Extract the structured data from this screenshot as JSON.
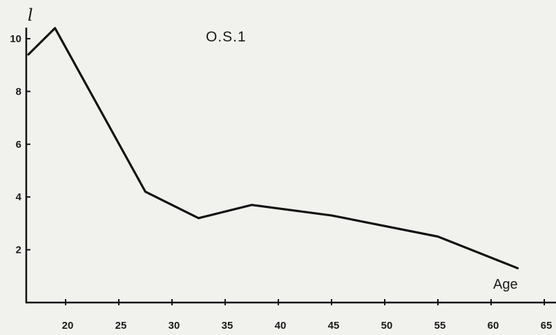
{
  "chart_data": {
    "type": "line",
    "title": "O.S.1",
    "ylabel": "l",
    "xlabel": "Age",
    "xlim": [
      15,
      66
    ],
    "ylim": [
      0,
      11
    ],
    "x_ticks": [
      "20",
      "25",
      "30",
      "35",
      "40",
      "45",
      "50",
      "55",
      "60",
      "65"
    ],
    "y_ticks": [
      "2",
      "4",
      "6",
      "8",
      "10"
    ],
    "grid": false,
    "legend": "none",
    "series": [
      {
        "x": [
          16.5,
          19,
          27.5,
          32.5,
          37.5,
          45,
          55,
          62.5
        ],
        "y": [
          9.4,
          10.4,
          4.2,
          3.2,
          3.7,
          3.3,
          2.5,
          1.3
        ]
      }
    ],
    "colors": {
      "line": "#111111",
      "axis": "#111111",
      "background": "#f1f1ee"
    }
  }
}
